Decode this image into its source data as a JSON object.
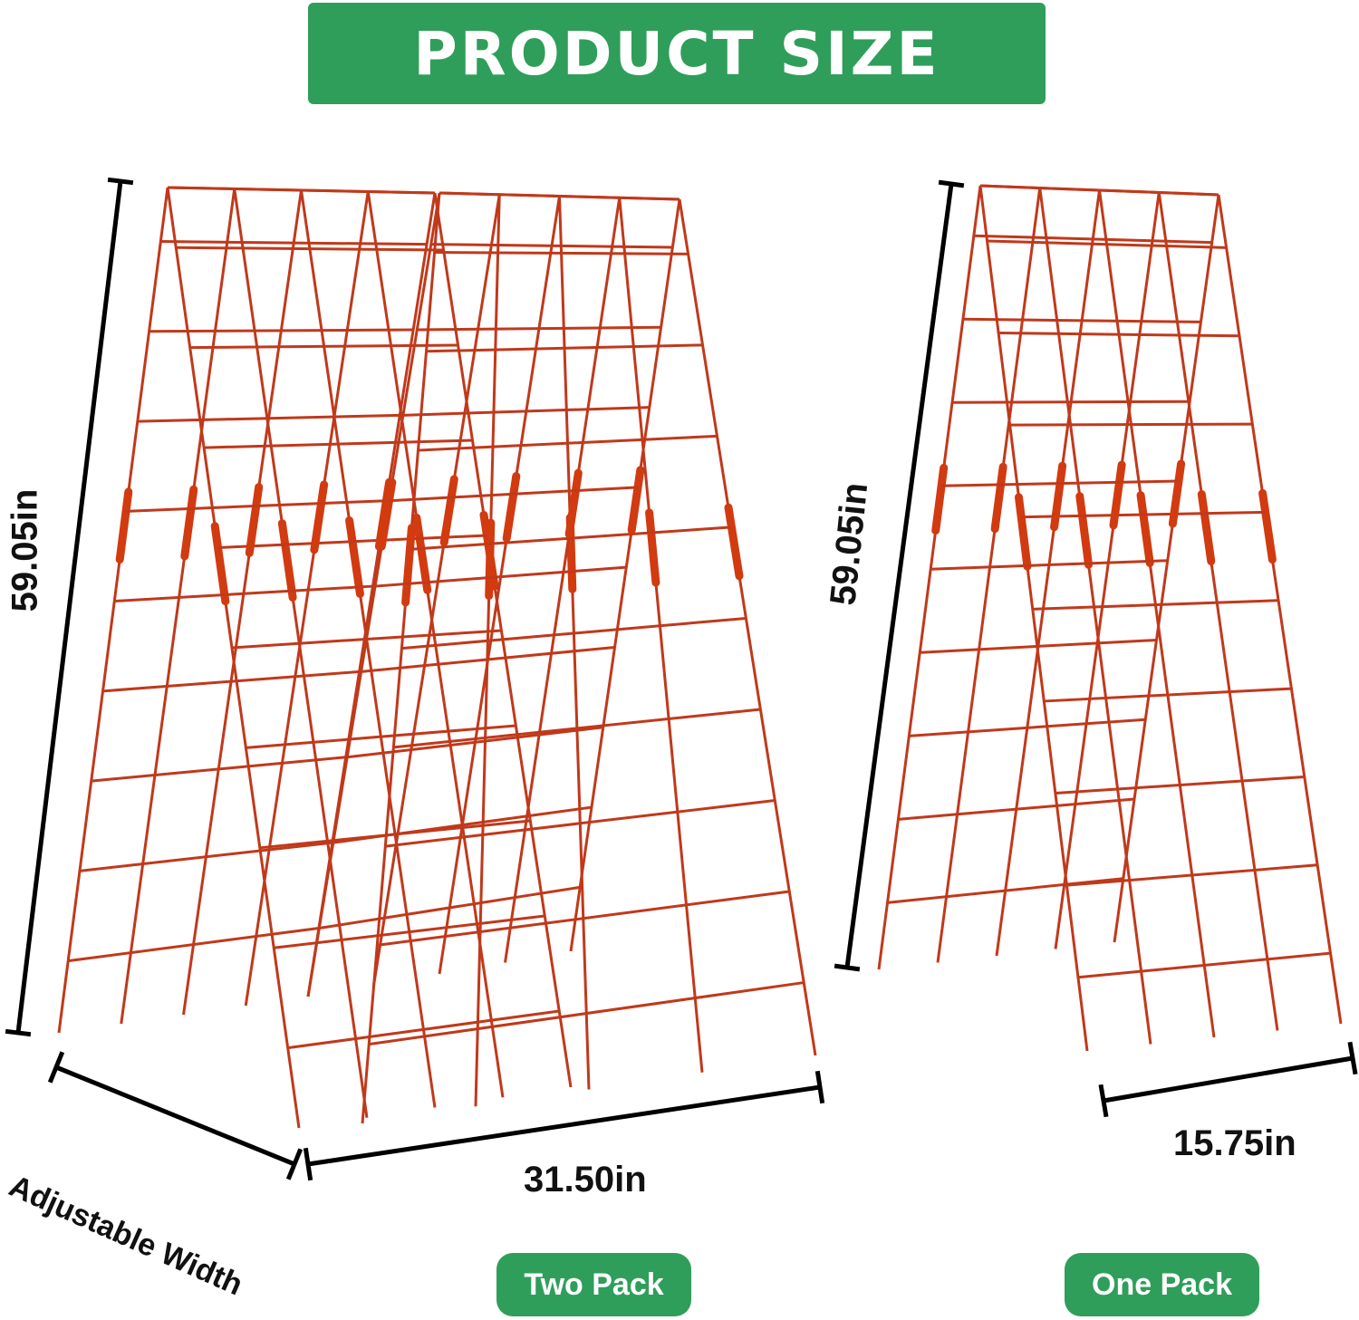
{
  "header": {
    "title": "PRODUCT SIZE"
  },
  "two_pack": {
    "height": "59.05in",
    "width": "31.50in",
    "adjustable": "Adjustable Width",
    "label": "Two Pack"
  },
  "one_pack": {
    "height": "59.05in",
    "width": "15.75in",
    "label": "One Pack"
  }
}
